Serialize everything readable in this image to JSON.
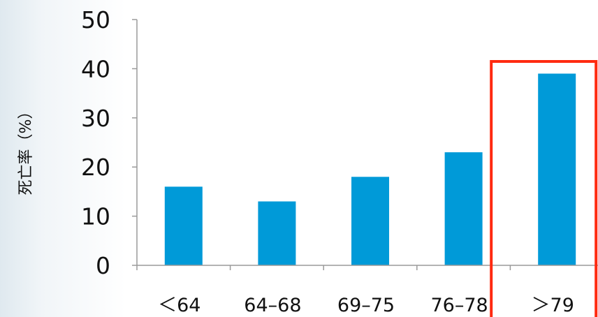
{
  "chart_data": {
    "type": "bar",
    "categories": [
      "＜64",
      "64–68",
      "69–75",
      "76–78",
      "＞79"
    ],
    "values": [
      16,
      13,
      18,
      23,
      39
    ],
    "xlabel": "",
    "ylabel": "死亡率（%）",
    "ylim": [
      0,
      50
    ],
    "yticks": [
      0,
      10,
      20,
      30,
      40,
      50
    ],
    "grid": false,
    "bar_color": "#009ad8",
    "highlight": {
      "category": "＞79",
      "color": "#ff2a10"
    }
  }
}
